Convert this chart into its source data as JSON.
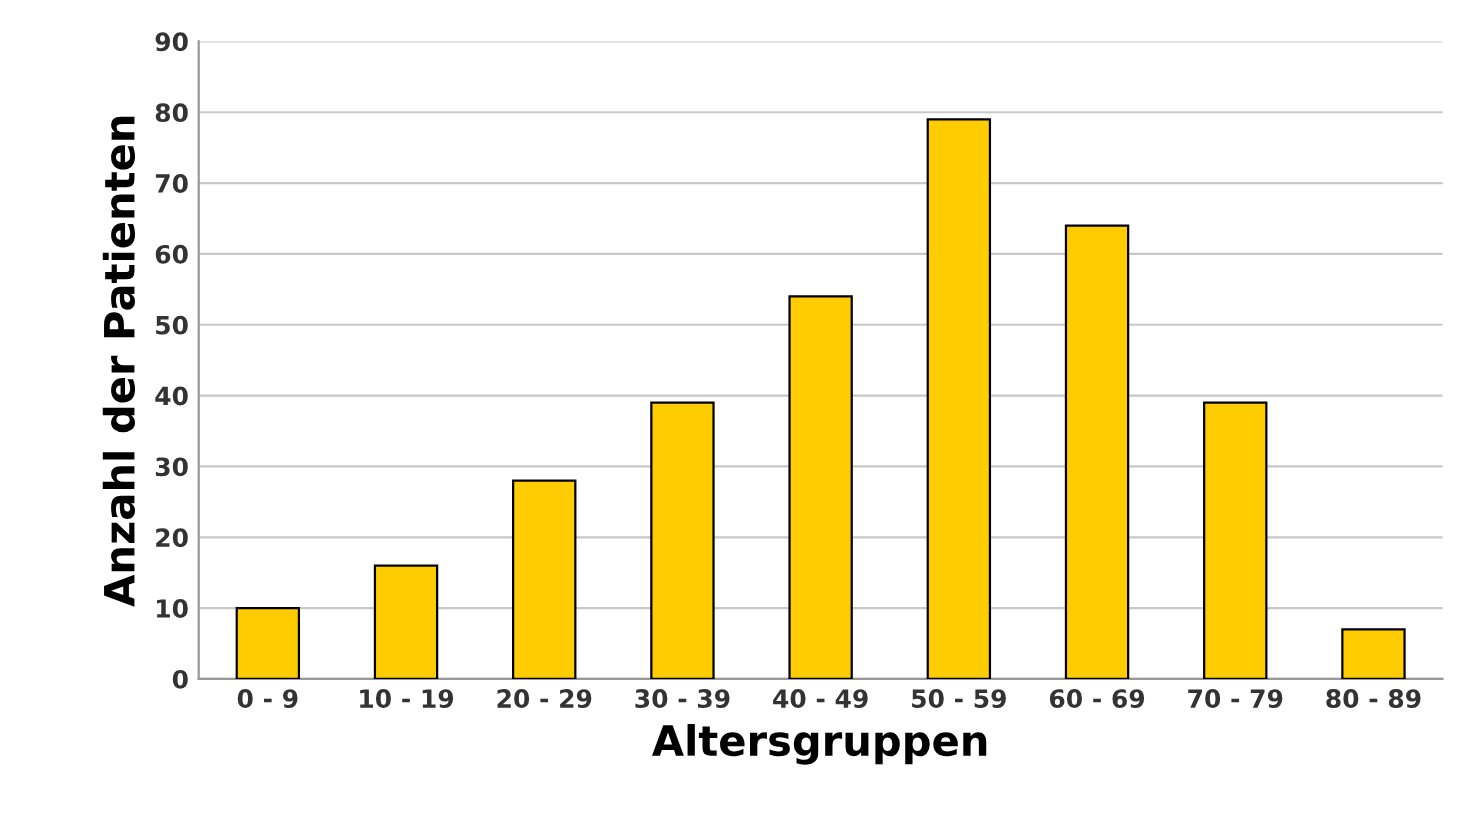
{
  "chart_data": {
    "type": "bar",
    "xlabel": "Altersgruppen",
    "ylabel": "Anzahl der Patienten",
    "categories": [
      "0 - 9",
      "10 - 19",
      "20 - 29",
      "30 - 39",
      "40 - 49",
      "50 - 59",
      "60 - 69",
      "70 - 79",
      "80 - 89"
    ],
    "values": [
      10,
      16,
      28,
      39,
      54,
      79,
      64,
      39,
      7
    ],
    "color": "#ffcc00",
    "ylim": [
      0,
      90
    ],
    "yticks": [
      0,
      10,
      20,
      30,
      40,
      50,
      60,
      70,
      80,
      90
    ],
    "grid": "y",
    "legend": false
  }
}
